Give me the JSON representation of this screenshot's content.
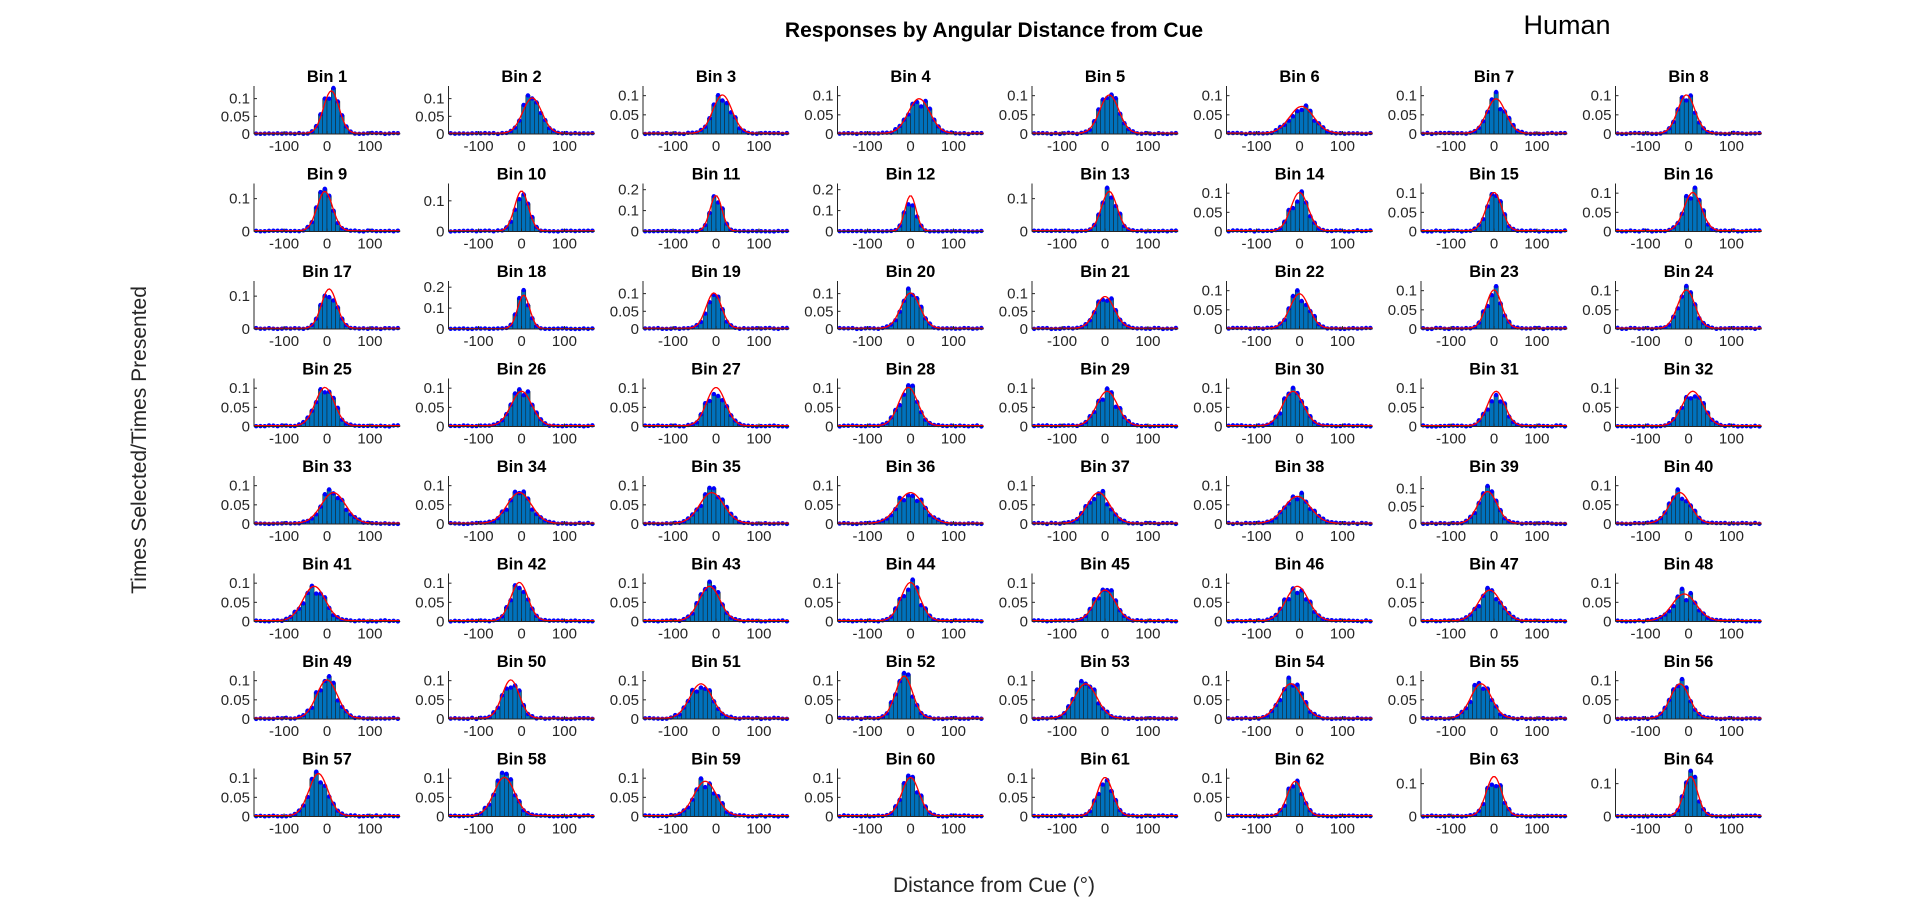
{
  "figure": {
    "title": "Responses by Angular Distance from Cue",
    "label": "Human",
    "xlabel": "Distance from Cue (°)",
    "ylabel": "Times Selected/Times Presented"
  },
  "colors": {
    "bars": "#0072bd",
    "dots": "#0000ff",
    "fit": "#ff0000",
    "axes": "#262626"
  },
  "chart_data": {
    "type": "bar",
    "layout": {
      "rows": 8,
      "cols": 8
    },
    "xlim": [
      -170,
      170
    ],
    "xticks": [
      -100,
      0,
      100
    ],
    "bin_width": 10,
    "series_description": "histogram bars with dot markers and a red fitted curve per panel",
    "panels": [
      {
        "title": "Bin 1",
        "peak": 0.12,
        "center": 10,
        "width": 18,
        "yticks": [
          0,
          0.05,
          0.1
        ],
        "ylim": [
          0,
          0.13
        ]
      },
      {
        "title": "Bin 2",
        "peak": 0.1,
        "center": 25,
        "width": 22,
        "yticks": [
          0,
          0.05,
          0.1
        ],
        "ylim": [
          0,
          0.13
        ]
      },
      {
        "title": "Bin 3",
        "peak": 0.1,
        "center": 15,
        "width": 22,
        "yticks": [
          0,
          0.05,
          0.1
        ],
        "ylim": [
          0,
          0.12
        ]
      },
      {
        "title": "Bin 4",
        "peak": 0.09,
        "center": 20,
        "width": 25,
        "yticks": [
          0,
          0.05,
          0.1
        ],
        "ylim": [
          0,
          0.12
        ]
      },
      {
        "title": "Bin 5",
        "peak": 0.1,
        "center": 10,
        "width": 22,
        "yticks": [
          0,
          0.05,
          0.1
        ],
        "ylim": [
          0,
          0.12
        ]
      },
      {
        "title": "Bin 6",
        "peak": 0.07,
        "center": 5,
        "width": 28,
        "yticks": [
          0,
          0.05,
          0.1
        ],
        "ylim": [
          0,
          0.12
        ]
      },
      {
        "title": "Bin 7",
        "peak": 0.09,
        "center": 5,
        "width": 22,
        "yticks": [
          0,
          0.05,
          0.1
        ],
        "ylim": [
          0,
          0.12
        ]
      },
      {
        "title": "Bin 8",
        "peak": 0.1,
        "center": -5,
        "width": 20,
        "yticks": [
          0,
          0.05,
          0.1
        ],
        "ylim": [
          0,
          0.12
        ]
      },
      {
        "title": "Bin 9",
        "peak": 0.12,
        "center": -5,
        "width": 18,
        "yticks": [
          0,
          0.1
        ],
        "ylim": [
          0,
          0.14
        ]
      },
      {
        "title": "Bin 10",
        "peak": 0.13,
        "center": 0,
        "width": 16,
        "yticks": [
          0,
          0.1
        ],
        "ylim": [
          0,
          0.15
        ]
      },
      {
        "title": "Bin 11",
        "peak": 0.17,
        "center": 0,
        "width": 14,
        "yticks": [
          0,
          0.1,
          0.2
        ],
        "ylim": [
          0,
          0.22
        ]
      },
      {
        "title": "Bin 12",
        "peak": 0.17,
        "center": 0,
        "width": 13,
        "yticks": [
          0,
          0.1,
          0.2
        ],
        "ylim": [
          0,
          0.22
        ]
      },
      {
        "title": "Bin 13",
        "peak": 0.12,
        "center": 10,
        "width": 18,
        "yticks": [
          0,
          0.1
        ],
        "ylim": [
          0,
          0.14
        ]
      },
      {
        "title": "Bin 14",
        "peak": 0.1,
        "center": 0,
        "width": 20,
        "yticks": [
          0,
          0.05,
          0.1
        ],
        "ylim": [
          0,
          0.12
        ]
      },
      {
        "title": "Bin 15",
        "peak": 0.1,
        "center": 0,
        "width": 18,
        "yticks": [
          0,
          0.05,
          0.1
        ],
        "ylim": [
          0,
          0.12
        ]
      },
      {
        "title": "Bin 16",
        "peak": 0.1,
        "center": 10,
        "width": 20,
        "yticks": [
          0,
          0.05,
          0.1
        ],
        "ylim": [
          0,
          0.12
        ]
      },
      {
        "title": "Bin 17",
        "peak": 0.12,
        "center": 5,
        "width": 18,
        "yticks": [
          0,
          0.1
        ],
        "ylim": [
          0,
          0.14
        ]
      },
      {
        "title": "Bin 18",
        "peak": 0.16,
        "center": 5,
        "width": 14,
        "yticks": [
          0,
          0.1,
          0.2
        ],
        "ylim": [
          0,
          0.22
        ]
      },
      {
        "title": "Bin 19",
        "peak": 0.1,
        "center": -5,
        "width": 18,
        "yticks": [
          0,
          0.05,
          0.1
        ],
        "ylim": [
          0,
          0.13
        ]
      },
      {
        "title": "Bin 20",
        "peak": 0.1,
        "center": 0,
        "width": 22,
        "yticks": [
          0,
          0.05,
          0.1
        ],
        "ylim": [
          0,
          0.13
        ]
      },
      {
        "title": "Bin 21",
        "peak": 0.09,
        "center": 0,
        "width": 22,
        "yticks": [
          0,
          0.05,
          0.1
        ],
        "ylim": [
          0,
          0.13
        ]
      },
      {
        "title": "Bin 22",
        "peak": 0.09,
        "center": 0,
        "width": 22,
        "yticks": [
          0,
          0.05,
          0.1
        ],
        "ylim": [
          0,
          0.12
        ]
      },
      {
        "title": "Bin 23",
        "peak": 0.1,
        "center": 0,
        "width": 18,
        "yticks": [
          0,
          0.05,
          0.1
        ],
        "ylim": [
          0,
          0.12
        ]
      },
      {
        "title": "Bin 24",
        "peak": 0.1,
        "center": -5,
        "width": 20,
        "yticks": [
          0,
          0.05,
          0.1
        ],
        "ylim": [
          0,
          0.12
        ]
      },
      {
        "title": "Bin 25",
        "peak": 0.1,
        "center": -5,
        "width": 22,
        "yticks": [
          0,
          0.05,
          0.1
        ],
        "ylim": [
          0,
          0.12
        ]
      },
      {
        "title": "Bin 26",
        "peak": 0.09,
        "center": 0,
        "width": 24,
        "yticks": [
          0,
          0.05,
          0.1
        ],
        "ylim": [
          0,
          0.12
        ]
      },
      {
        "title": "Bin 27",
        "peak": 0.1,
        "center": 0,
        "width": 22,
        "yticks": [
          0,
          0.05,
          0.1
        ],
        "ylim": [
          0,
          0.12
        ]
      },
      {
        "title": "Bin 28",
        "peak": 0.1,
        "center": -5,
        "width": 22,
        "yticks": [
          0,
          0.05,
          0.1
        ],
        "ylim": [
          0,
          0.12
        ]
      },
      {
        "title": "Bin 29",
        "peak": 0.09,
        "center": 5,
        "width": 24,
        "yticks": [
          0,
          0.05,
          0.1
        ],
        "ylim": [
          0,
          0.12
        ]
      },
      {
        "title": "Bin 30",
        "peak": 0.09,
        "center": -15,
        "width": 24,
        "yticks": [
          0,
          0.05,
          0.1
        ],
        "ylim": [
          0,
          0.12
        ]
      },
      {
        "title": "Bin 31",
        "peak": 0.09,
        "center": 5,
        "width": 20,
        "yticks": [
          0,
          0.05,
          0.1
        ],
        "ylim": [
          0,
          0.12
        ]
      },
      {
        "title": "Bin 32",
        "peak": 0.09,
        "center": 10,
        "width": 24,
        "yticks": [
          0,
          0.05,
          0.1
        ],
        "ylim": [
          0,
          0.12
        ]
      },
      {
        "title": "Bin 33",
        "peak": 0.08,
        "center": 15,
        "width": 28,
        "yticks": [
          0,
          0.05,
          0.1
        ],
        "ylim": [
          0,
          0.12
        ]
      },
      {
        "title": "Bin 34",
        "peak": 0.08,
        "center": -5,
        "width": 28,
        "yticks": [
          0,
          0.05,
          0.1
        ],
        "ylim": [
          0,
          0.12
        ]
      },
      {
        "title": "Bin 35",
        "peak": 0.08,
        "center": -10,
        "width": 28,
        "yticks": [
          0,
          0.05,
          0.1
        ],
        "ylim": [
          0,
          0.12
        ]
      },
      {
        "title": "Bin 36",
        "peak": 0.08,
        "center": 0,
        "width": 30,
        "yticks": [
          0,
          0.05,
          0.1
        ],
        "ylim": [
          0,
          0.12
        ]
      },
      {
        "title": "Bin 37",
        "peak": 0.08,
        "center": -15,
        "width": 26,
        "yticks": [
          0,
          0.05,
          0.1
        ],
        "ylim": [
          0,
          0.12
        ]
      },
      {
        "title": "Bin 38",
        "peak": 0.07,
        "center": -5,
        "width": 30,
        "yticks": [
          0,
          0.05,
          0.1
        ],
        "ylim": [
          0,
          0.12
        ]
      },
      {
        "title": "Bin 39",
        "peak": 0.09,
        "center": -15,
        "width": 22,
        "yticks": [
          0,
          0.05,
          0.1
        ],
        "ylim": [
          0,
          0.13
        ]
      },
      {
        "title": "Bin 40",
        "peak": 0.08,
        "center": -20,
        "width": 24,
        "yticks": [
          0,
          0.05,
          0.1
        ],
        "ylim": [
          0,
          0.12
        ]
      },
      {
        "title": "Bin 41",
        "peak": 0.09,
        "center": -30,
        "width": 26,
        "yticks": [
          0,
          0.05,
          0.1
        ],
        "ylim": [
          0,
          0.12
        ]
      },
      {
        "title": "Bin 42",
        "peak": 0.1,
        "center": -5,
        "width": 20,
        "yticks": [
          0,
          0.05,
          0.1
        ],
        "ylim": [
          0,
          0.12
        ]
      },
      {
        "title": "Bin 43",
        "peak": 0.09,
        "center": -15,
        "width": 24,
        "yticks": [
          0,
          0.05,
          0.1
        ],
        "ylim": [
          0,
          0.12
        ]
      },
      {
        "title": "Bin 44",
        "peak": 0.1,
        "center": 0,
        "width": 22,
        "yticks": [
          0,
          0.05,
          0.1
        ],
        "ylim": [
          0,
          0.12
        ]
      },
      {
        "title": "Bin 45",
        "peak": 0.08,
        "center": 0,
        "width": 24,
        "yticks": [
          0,
          0.05,
          0.1
        ],
        "ylim": [
          0,
          0.12
        ]
      },
      {
        "title": "Bin 46",
        "peak": 0.09,
        "center": -5,
        "width": 26,
        "yticks": [
          0,
          0.05,
          0.1
        ],
        "ylim": [
          0,
          0.12
        ]
      },
      {
        "title": "Bin 47",
        "peak": 0.08,
        "center": -10,
        "width": 26,
        "yticks": [
          0,
          0.05,
          0.1
        ],
        "ylim": [
          0,
          0.12
        ]
      },
      {
        "title": "Bin 48",
        "peak": 0.07,
        "center": -10,
        "width": 28,
        "yticks": [
          0,
          0.05,
          0.1
        ],
        "ylim": [
          0,
          0.12
        ]
      },
      {
        "title": "Bin 49",
        "peak": 0.1,
        "center": 0,
        "width": 24,
        "yticks": [
          0,
          0.05,
          0.1
        ],
        "ylim": [
          0,
          0.12
        ]
      },
      {
        "title": "Bin 50",
        "peak": 0.1,
        "center": -25,
        "width": 20,
        "yticks": [
          0,
          0.05,
          0.1
        ],
        "ylim": [
          0,
          0.12
        ]
      },
      {
        "title": "Bin 51",
        "peak": 0.09,
        "center": -35,
        "width": 26,
        "yticks": [
          0,
          0.05,
          0.1
        ],
        "ylim": [
          0,
          0.12
        ]
      },
      {
        "title": "Bin 52",
        "peak": 0.11,
        "center": -15,
        "width": 20,
        "yticks": [
          0,
          0.05,
          0.1
        ],
        "ylim": [
          0,
          0.12
        ]
      },
      {
        "title": "Bin 53",
        "peak": 0.09,
        "center": -45,
        "width": 26,
        "yticks": [
          0,
          0.05,
          0.1
        ],
        "ylim": [
          0,
          0.12
        ]
      },
      {
        "title": "Bin 54",
        "peak": 0.09,
        "center": -20,
        "width": 26,
        "yticks": [
          0,
          0.05,
          0.1
        ],
        "ylim": [
          0,
          0.12
        ]
      },
      {
        "title": "Bin 55",
        "peak": 0.09,
        "center": -30,
        "width": 24,
        "yticks": [
          0,
          0.05,
          0.1
        ],
        "ylim": [
          0,
          0.12
        ]
      },
      {
        "title": "Bin 56",
        "peak": 0.09,
        "center": -20,
        "width": 22,
        "yticks": [
          0,
          0.05,
          0.1
        ],
        "ylim": [
          0,
          0.12
        ]
      },
      {
        "title": "Bin 57",
        "peak": 0.11,
        "center": -20,
        "width": 22,
        "yticks": [
          0,
          0.05,
          0.1
        ],
        "ylim": [
          0,
          0.12
        ]
      },
      {
        "title": "Bin 58",
        "peak": 0.1,
        "center": -40,
        "width": 24,
        "yticks": [
          0,
          0.05,
          0.1
        ],
        "ylim": [
          0,
          0.12
        ]
      },
      {
        "title": "Bin 59",
        "peak": 0.09,
        "center": -25,
        "width": 26,
        "yticks": [
          0,
          0.05,
          0.1
        ],
        "ylim": [
          0,
          0.12
        ]
      },
      {
        "title": "Bin 60",
        "peak": 0.1,
        "center": 0,
        "width": 20,
        "yticks": [
          0,
          0.05,
          0.1
        ],
        "ylim": [
          0,
          0.12
        ]
      },
      {
        "title": "Bin 61",
        "peak": 0.1,
        "center": 0,
        "width": 18,
        "yticks": [
          0,
          0.05,
          0.1
        ],
        "ylim": [
          0,
          0.12
        ]
      },
      {
        "title": "Bin 62",
        "peak": 0.09,
        "center": -10,
        "width": 18,
        "yticks": [
          0,
          0.05,
          0.1
        ],
        "ylim": [
          0,
          0.12
        ]
      },
      {
        "title": "Bin 63",
        "peak": 0.12,
        "center": 0,
        "width": 18,
        "yticks": [
          0,
          0.1
        ],
        "ylim": [
          0,
          0.14
        ]
      },
      {
        "title": "Bin 64",
        "peak": 0.12,
        "center": 5,
        "width": 16,
        "yticks": [
          0,
          0.1
        ],
        "ylim": [
          0,
          0.14
        ]
      }
    ]
  }
}
